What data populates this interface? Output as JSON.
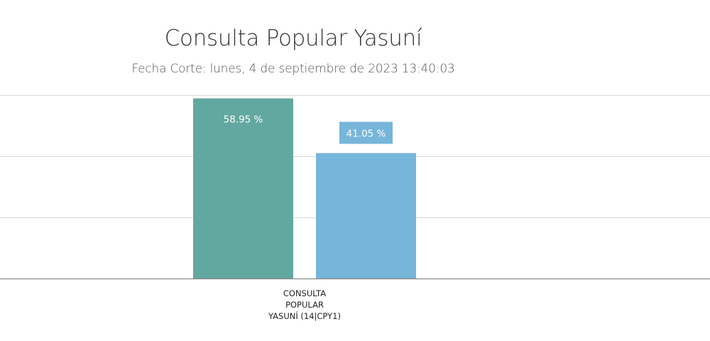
{
  "title": "Consulta Popular Yasuní",
  "subtitle": "Fecha Corte: lunes, 4 de septiembre de 2023 13:40:03",
  "chart_data": {
    "type": "bar",
    "categories": [
      "CONSULTA POPULAR YASUNÍ (14|CPY1)"
    ],
    "category_label_lines": [
      "CONSULTA",
      "POPULAR",
      "YASUNÍ (14|CPY1)"
    ],
    "series": [
      {
        "values": [
          58.95
        ],
        "color": "#62a8a0",
        "label": "58.95 %"
      },
      {
        "values": [
          41.05
        ],
        "color": "#77b5da",
        "label": "41.05 %"
      }
    ],
    "title": "Consulta Popular Yasuní",
    "subtitle": "Fecha Corte: lunes, 4 de septiembre de 2023 13:40:03",
    "xlabel": "",
    "ylabel": "",
    "ylim": [
      0,
      60
    ],
    "grid": true,
    "legend": "none"
  }
}
